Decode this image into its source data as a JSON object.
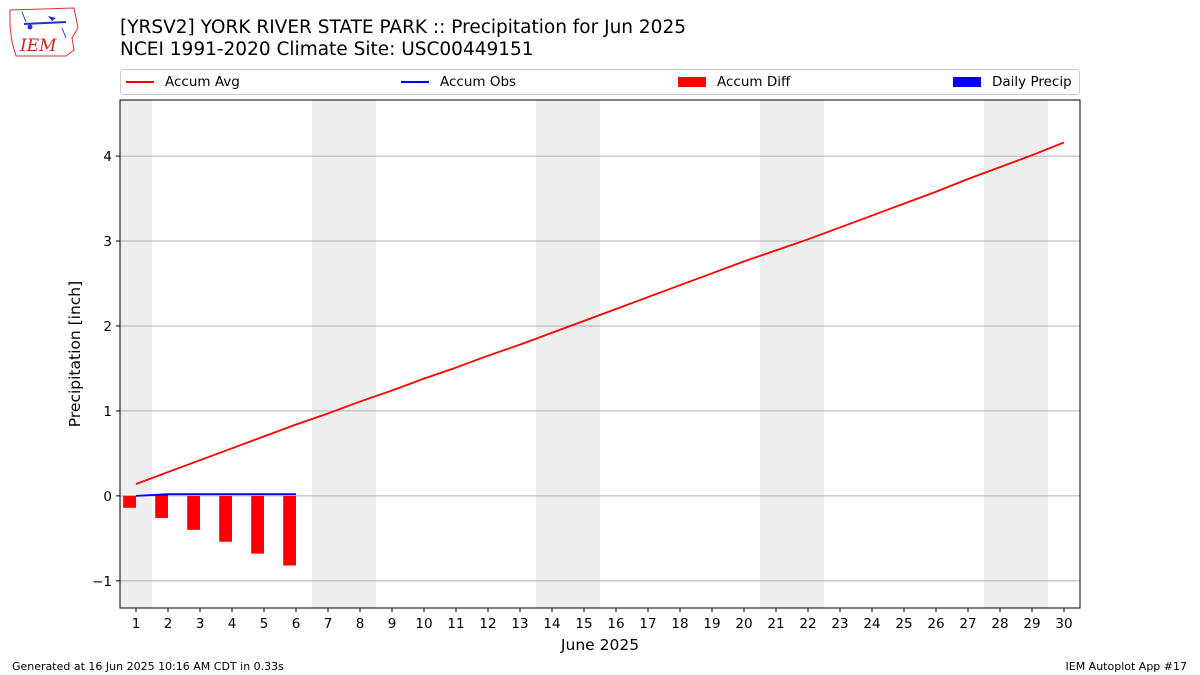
{
  "title_line1": "[YRSV2] YORK RIVER STATE PARK :: Precipitation for Jun 2025",
  "title_line2": "NCEI 1991-2020 Climate Site: USC00449151",
  "logo_text": "IEM",
  "footer_left": "Generated at 16 Jun 2025 10:16 AM CDT in 0.33s",
  "footer_right": "IEM Autoplot App #17",
  "legend": [
    {
      "label": "Accum Avg",
      "color": "#ff0000",
      "kind": "line"
    },
    {
      "label": "Accum Obs",
      "color": "#0000ff",
      "kind": "line"
    },
    {
      "label": "Accum Diff",
      "color": "#ff0000",
      "kind": "box"
    },
    {
      "label": "Daily Precip",
      "color": "#0000ff",
      "kind": "box"
    }
  ],
  "chart_data": {
    "type": "line",
    "title": "[YRSV2] YORK RIVER STATE PARK :: Precipitation for Jun 2025",
    "xlabel": "June 2025",
    "ylabel": "Precipitation [inch]",
    "xlim": [
      0.5,
      30.5
    ],
    "ylim": [
      -1.32,
      4.66
    ],
    "x_ticks": [
      1,
      2,
      3,
      4,
      5,
      6,
      7,
      8,
      9,
      10,
      11,
      12,
      13,
      14,
      15,
      16,
      17,
      18,
      19,
      20,
      21,
      22,
      23,
      24,
      25,
      26,
      27,
      28,
      29,
      30
    ],
    "y_ticks": [
      -1,
      0,
      1,
      2,
      3,
      4
    ],
    "y_tick_labels": [
      "−1",
      "0",
      "1",
      "2",
      "3",
      "4"
    ],
    "grid": "y",
    "weekend_days": [
      1,
      7,
      8,
      14,
      15,
      21,
      22,
      28,
      29
    ],
    "series": [
      {
        "name": "Accum Avg",
        "kind": "line",
        "color": "#ff0000",
        "x": [
          1,
          2,
          3,
          4,
          5,
          6,
          7,
          8,
          9,
          10,
          11,
          12,
          13,
          14,
          15,
          16,
          17,
          18,
          19,
          20,
          21,
          22,
          23,
          24,
          25,
          26,
          27,
          28,
          29,
          30
        ],
        "values": [
          0.14,
          0.28,
          0.42,
          0.56,
          0.7,
          0.84,
          0.97,
          1.11,
          1.24,
          1.38,
          1.51,
          1.65,
          1.78,
          1.92,
          2.06,
          2.2,
          2.34,
          2.48,
          2.62,
          2.76,
          2.89,
          3.02,
          3.16,
          3.3,
          3.44,
          3.58,
          3.73,
          3.87,
          4.01,
          4.16
        ]
      },
      {
        "name": "Accum Obs",
        "kind": "line",
        "color": "#0000ff",
        "x": [
          1,
          2,
          3,
          4,
          5,
          6
        ],
        "values": [
          0.0,
          0.02,
          0.02,
          0.02,
          0.02,
          0.02
        ]
      },
      {
        "name": "Accum Diff",
        "kind": "bar",
        "color": "#ff0000",
        "x": [
          1,
          2,
          3,
          4,
          5,
          6
        ],
        "values": [
          -0.14,
          -0.26,
          -0.4,
          -0.54,
          -0.68,
          -0.82
        ]
      },
      {
        "name": "Daily Precip",
        "kind": "bar",
        "color": "#0000ff",
        "x": [
          1,
          2,
          3,
          4,
          5,
          6
        ],
        "values": [
          0.0,
          0.02,
          0.0,
          0.0,
          0.0,
          0.0
        ]
      }
    ]
  }
}
